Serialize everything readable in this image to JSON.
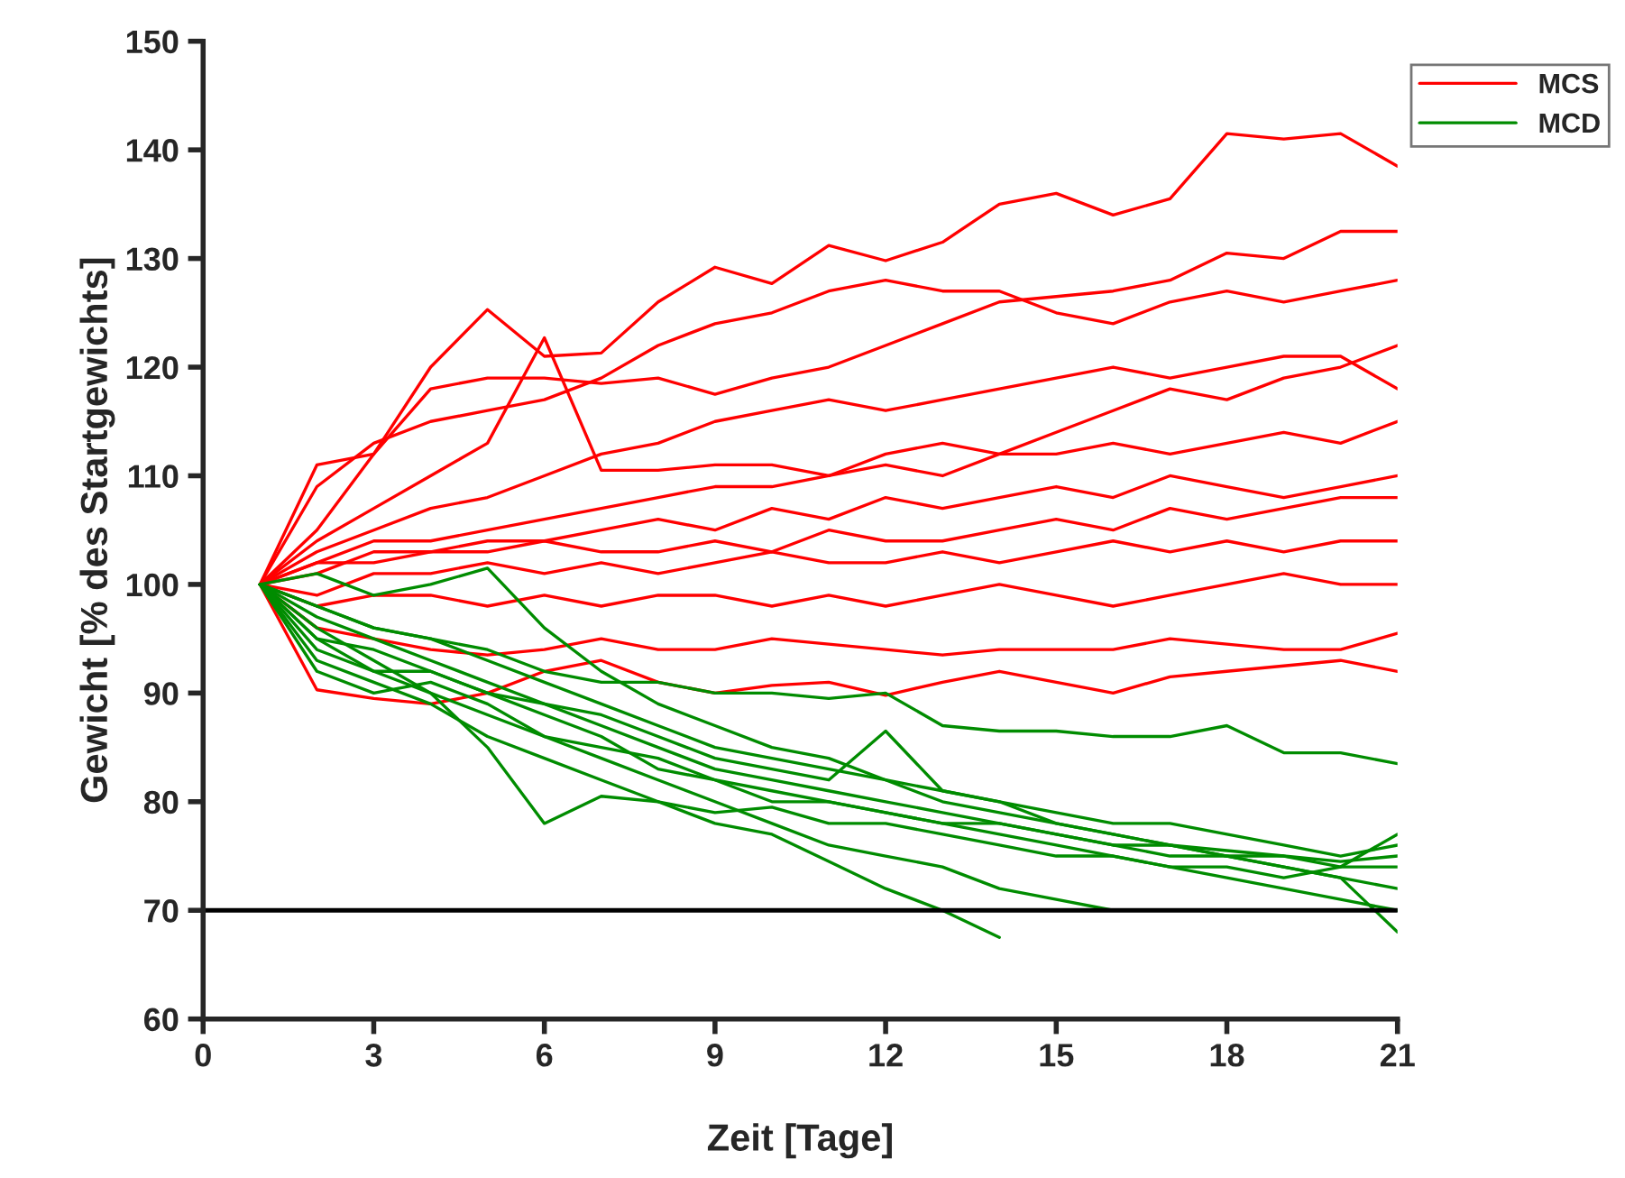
{
  "chart_data": {
    "type": "line",
    "xlabel": "Zeit [Tage]",
    "ylabel": "Gewicht [% des Startgewichts]",
    "x": [
      1,
      2,
      3,
      4,
      5,
      6,
      7,
      8,
      9,
      10,
      11,
      12,
      13,
      14,
      15,
      16,
      17,
      18,
      19,
      20,
      21
    ],
    "xlim": [
      0,
      21
    ],
    "xticks": [
      0,
      3,
      6,
      9,
      12,
      15,
      18,
      21
    ],
    "ylim": [
      60,
      150
    ],
    "yticks": [
      60,
      70,
      80,
      90,
      100,
      110,
      120,
      130,
      140,
      150
    ],
    "grid": false,
    "legend": "top right",
    "marker": "none",
    "line_style": "solid",
    "ref_lines": [
      {
        "axis": "y",
        "value": 70,
        "color": "#000000"
      }
    ],
    "series": [
      {
        "name": "MCS",
        "color": "#ff0000",
        "values": [
          100,
          105,
          112,
          120,
          125.3,
          121,
          121.3,
          126,
          129.2,
          127.7,
          131.2,
          129.8,
          131.5,
          135,
          136,
          134,
          135.5,
          141.5,
          141,
          141.5,
          138.5
        ]
      },
      {
        "color": "#ff0000",
        "values": [
          100,
          111,
          112,
          118,
          119,
          119,
          118.5,
          119,
          117.5,
          119,
          120,
          122,
          124,
          126,
          126.5,
          127,
          128,
          130.5,
          130,
          132.5,
          132.5
        ]
      },
      {
        "color": "#ff0000",
        "values": [
          100,
          109,
          113,
          115,
          116,
          117,
          119,
          122,
          124,
          125,
          127,
          128,
          127,
          127,
          125,
          124,
          126,
          127,
          126,
          127,
          128
        ]
      },
      {
        "color": "#ff0000",
        "values": [
          100,
          104,
          107,
          110,
          113,
          122.7,
          110.5,
          110.5,
          111,
          111,
          110,
          112,
          113,
          112,
          114,
          116,
          118,
          117,
          119,
          120,
          122
        ]
      },
      {
        "color": "#ff0000",
        "values": [
          100,
          103,
          105,
          107,
          108,
          110,
          112,
          113,
          115,
          116,
          117,
          116,
          117,
          118,
          119,
          120,
          119,
          120,
          121,
          121,
          118
        ]
      },
      {
        "color": "#ff0000",
        "values": [
          100,
          102,
          104,
          104,
          105,
          106,
          107,
          108,
          109,
          109,
          110,
          111,
          110,
          112,
          112,
          113,
          112,
          113,
          114,
          113,
          115
        ]
      },
      {
        "color": "#ff0000",
        "values": [
          100,
          101,
          103,
          103,
          104,
          104,
          105,
          106,
          105,
          107,
          106,
          108,
          107,
          108,
          109,
          108,
          110,
          109,
          108,
          109,
          110
        ]
      },
      {
        "color": "#ff0000",
        "values": [
          100,
          102,
          102,
          103,
          103,
          104,
          103,
          103,
          104,
          103,
          105,
          104,
          104,
          105,
          106,
          105,
          107,
          106,
          107,
          108,
          108
        ]
      },
      {
        "color": "#ff0000",
        "values": [
          100,
          99,
          101,
          101,
          102,
          101,
          102,
          101,
          102,
          103,
          102,
          102,
          103,
          102,
          103,
          104,
          103,
          104,
          103,
          104,
          104
        ]
      },
      {
        "color": "#ff0000",
        "values": [
          100,
          98,
          99,
          99,
          98,
          99,
          98,
          99,
          99,
          98,
          99,
          98,
          99,
          100,
          99,
          98,
          99,
          100,
          101,
          100,
          100
        ]
      },
      {
        "color": "#ff0000",
        "values": [
          100,
          96,
          95,
          94,
          93.5,
          94,
          95,
          94,
          94,
          95,
          94.5,
          94,
          93.5,
          94,
          94,
          94,
          95,
          94.5,
          94,
          94,
          95.5
        ]
      },
      {
        "color": "#ff0000",
        "values": [
          100,
          90.3,
          89.5,
          89,
          90,
          92,
          93,
          91,
          90,
          90.7,
          91,
          89.8,
          91,
          92,
          91,
          90,
          91.5,
          92,
          92.5,
          93,
          92
        ]
      },
      {
        "name": "MCD",
        "color": "#008c00",
        "values": [
          100,
          98,
          96,
          95,
          94,
          92,
          91,
          91,
          90,
          90,
          89.5,
          90,
          87,
          86.5,
          86.5,
          86,
          86,
          87,
          84.5,
          84.5,
          83.5
        ]
      },
      {
        "color": "#008c00",
        "values": [
          100,
          101,
          99,
          100,
          101.5,
          96,
          92,
          89,
          87,
          85,
          84,
          82,
          80,
          79,
          78,
          77,
          76,
          75.5,
          75,
          74.5,
          75
        ]
      },
      {
        "color": "#008c00",
        "values": [
          100,
          96,
          93,
          90,
          85,
          78,
          80.5,
          80,
          79,
          79.5,
          78,
          78,
          77,
          76,
          75,
          75,
          74,
          74,
          73,
          74,
          74
        ]
      },
      {
        "color": "#008c00",
        "values": [
          100,
          93,
          91,
          89,
          86,
          84,
          82,
          80,
          78,
          77,
          74.5,
          72,
          70,
          67.5,
          null,
          null,
          null,
          null,
          null,
          null,
          null
        ]
      },
      {
        "color": "#008c00",
        "values": [
          100,
          95,
          92,
          90,
          88,
          86,
          84,
          82,
          80,
          78,
          76,
          75,
          74,
          72,
          71,
          70,
          null,
          null,
          null,
          null,
          null
        ]
      },
      {
        "color": "#008c00",
        "values": [
          100,
          97,
          95,
          93,
          91,
          89,
          87,
          85,
          83,
          82,
          81,
          80,
          79,
          78,
          77,
          76,
          75,
          75,
          74,
          73,
          72
        ]
      },
      {
        "color": "#008c00",
        "values": [
          100,
          94,
          92,
          92,
          90,
          88,
          86,
          83,
          82,
          81,
          80,
          79,
          78,
          77,
          76,
          75,
          74,
          73,
          72,
          71,
          70
        ]
      },
      {
        "color": "#008c00",
        "values": [
          100,
          92,
          90,
          91,
          89,
          86,
          85,
          84,
          82,
          80,
          80,
          79,
          78,
          78,
          77,
          76,
          76,
          75,
          75,
          74,
          77
        ]
      },
      {
        "color": "#008c00",
        "values": [
          100,
          95,
          94,
          92,
          90,
          89,
          88,
          86,
          84,
          83,
          82,
          86.5,
          81,
          80,
          79,
          78,
          78,
          77,
          76,
          75,
          76
        ]
      },
      {
        "color": "#008c00",
        "values": [
          100,
          98,
          96,
          95,
          93,
          91,
          89,
          87,
          85,
          84,
          83,
          82,
          81,
          80,
          78,
          77,
          76,
          75,
          74,
          73,
          68
        ]
      }
    ]
  }
}
